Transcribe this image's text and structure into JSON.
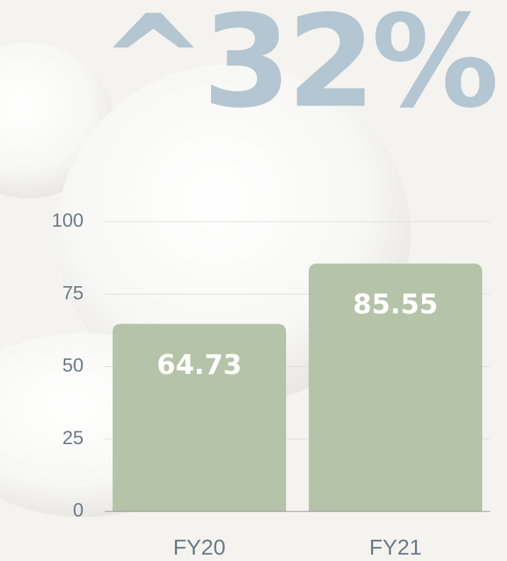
{
  "chart_data": {
    "type": "bar",
    "title": "^32%",
    "categories": [
      "FY20",
      "FY21"
    ],
    "values": [
      64.73,
      85.55
    ],
    "color": "#b5c4a8",
    "ylim": [
      0,
      100
    ],
    "yticks": [
      0,
      25,
      50,
      75,
      100
    ],
    "grid": true
  }
}
